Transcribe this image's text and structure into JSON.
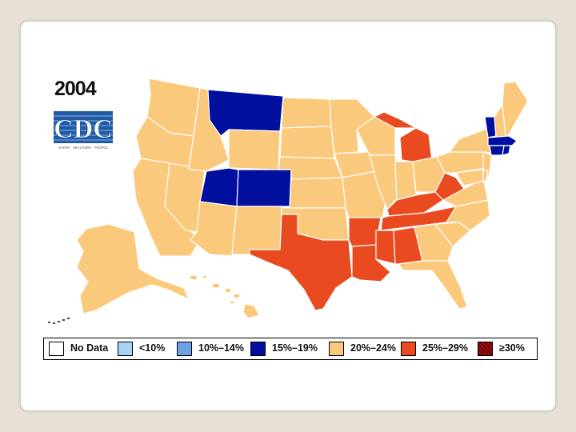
{
  "title": "2004",
  "logo": {
    "text": "CDC",
    "tagline": "SAFER · HEALTHIER · PEOPLE",
    "color": "#1f5aa6"
  },
  "colors": {
    "no_data": "#ffffff",
    "lt10": "#a8d4f5",
    "10_14": "#6d9fe4",
    "15_19": "#000f9e",
    "20_24": "#fbc97b",
    "25_29": "#ea4a1f",
    "gte30": "#a10d0d"
  },
  "legend": [
    {
      "key": "no_data",
      "label": "No Data"
    },
    {
      "key": "lt10",
      "label": "<10%"
    },
    {
      "key": "10_14",
      "label": "10%–14%"
    },
    {
      "key": "15_19",
      "label": "15%–19%"
    },
    {
      "key": "20_24",
      "label": "20%–24%"
    },
    {
      "key": "25_29",
      "label": "25%–29%"
    },
    {
      "key": "gte30",
      "label": "≥30%"
    }
  ],
  "states": {
    "WA": "20_24",
    "OR": "20_24",
    "CA": "20_24",
    "NV": "20_24",
    "ID": "20_24",
    "MT": "15_19",
    "WY": "20_24",
    "UT": "15_19",
    "CO": "15_19",
    "AZ": "20_24",
    "NM": "20_24",
    "ND": "20_24",
    "SD": "20_24",
    "NE": "20_24",
    "KS": "20_24",
    "OK": "20_24",
    "TX": "25_29",
    "MN": "20_24",
    "IA": "20_24",
    "MO": "20_24",
    "AR": "25_29",
    "LA": "25_29",
    "WI": "20_24",
    "IL": "20_24",
    "MI": "25_29",
    "IN": "20_24",
    "OH": "20_24",
    "KY": "25_29",
    "TN": "25_29",
    "MS": "25_29",
    "AL": "25_29",
    "GA": "20_24",
    "FL": "20_24",
    "SC": "20_24",
    "NC": "20_24",
    "VA": "20_24",
    "WV": "25_29",
    "PA": "20_24",
    "NY": "20_24",
    "VT": "15_19",
    "NH": "20_24",
    "ME": "20_24",
    "MA": "15_19",
    "CT": "15_19",
    "RI": "15_19",
    "NJ": "20_24",
    "DE": "20_24",
    "MD": "20_24",
    "AK": "20_24",
    "HI": "20_24"
  }
}
